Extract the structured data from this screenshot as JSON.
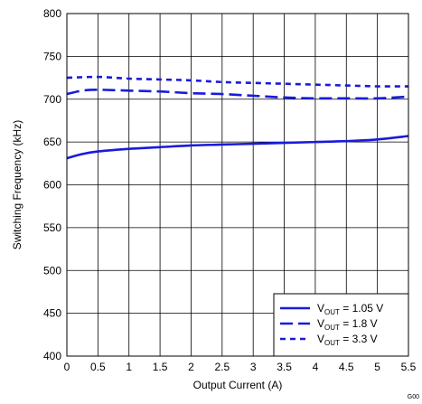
{
  "chart_data": {
    "type": "line",
    "xlabel": "Output Current (A)",
    "ylabel": "Switching Frequency (kHz)",
    "xlim": [
      0,
      5.5
    ],
    "ylim": [
      400,
      800
    ],
    "xticks": [
      "0",
      "0.5",
      "1",
      "1.5",
      "2",
      "2.5",
      "3",
      "3.5",
      "4",
      "4.5",
      "5",
      "5.5"
    ],
    "yticks": [
      "400",
      "450",
      "500",
      "550",
      "600",
      "650",
      "700",
      "750",
      "800"
    ],
    "grid": true,
    "legend_position": "bottom-right",
    "figure_code": "G00",
    "line_color": "#1a1adc",
    "series": [
      {
        "name": "V_OUT = 1.05 V",
        "legend": {
          "pre": "V",
          "sub": "OUT",
          "post": "  =  1.05 V"
        },
        "dash": "solid",
        "x": [
          0,
          0.25,
          0.5,
          1,
          1.5,
          2,
          2.5,
          3,
          3.5,
          4,
          4.5,
          5,
          5.5
        ],
        "y": [
          631,
          636,
          639,
          642,
          644,
          646,
          647,
          648,
          649,
          650,
          651,
          653,
          657
        ]
      },
      {
        "name": "V_OUT = 1.8 V",
        "legend": {
          "pre": "V",
          "sub": "OUT",
          "post": "  =  1.8 V"
        },
        "dash": "long-dash",
        "x": [
          0,
          0.25,
          0.5,
          1,
          1.5,
          2,
          2.5,
          3,
          3.5,
          4,
          4.5,
          5,
          5.5
        ],
        "y": [
          706,
          710,
          711,
          710,
          709,
          707,
          706,
          704,
          702,
          701,
          701,
          701,
          703
        ]
      },
      {
        "name": "V_OUT = 3.3 V",
        "legend": {
          "pre": "V",
          "sub": "OUT",
          "post": "  =  3.3 V"
        },
        "dash": "short-dash",
        "x": [
          0,
          0.5,
          1,
          1.5,
          2,
          2.5,
          3,
          3.5,
          4,
          4.5,
          5,
          5.5
        ],
        "y": [
          725,
          726,
          724,
          723,
          722,
          720,
          719,
          718,
          717,
          716,
          715,
          715
        ]
      }
    ]
  }
}
